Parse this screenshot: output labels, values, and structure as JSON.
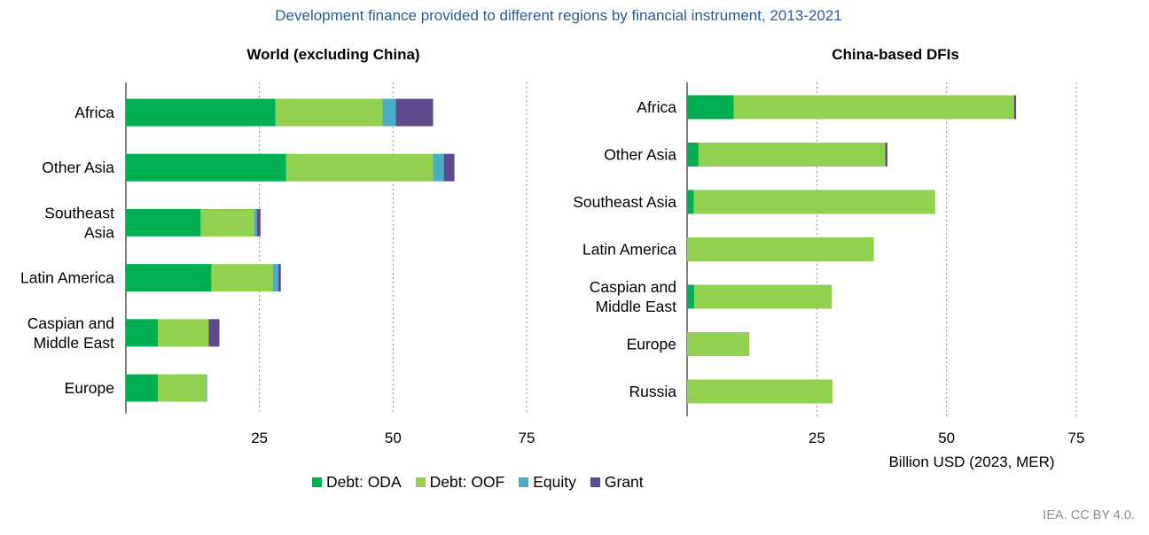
{
  "title": "Development finance provided to different regions by financial instrument, 2013-2021",
  "source": "IEA. CC BY 4.0.",
  "colors": {
    "debt_oda": "#00b050",
    "debt_oof": "#92d050",
    "equity": "#4bacc6",
    "grant": "#5f4b8b",
    "grid": "#909090",
    "title": "#2f5c8f"
  },
  "legend": [
    {
      "name": "Debt: ODA",
      "color": "#00b050"
    },
    {
      "name": "Debt: OOF",
      "color": "#92d050"
    },
    {
      "name": "Equity",
      "color": "#4bacc6"
    },
    {
      "name": "Grant",
      "color": "#5f4b8b"
    }
  ],
  "chart_data": [
    {
      "type": "bar",
      "orientation": "horizontal",
      "stacked": true,
      "title": "World (excluding China)",
      "xlabel": "",
      "categories": [
        [
          "Africa"
        ],
        [
          "Other Asia"
        ],
        [
          "Southeast",
          "Asia"
        ],
        [
          "Latin America"
        ],
        [
          "Caspian and",
          "Middle East"
        ],
        [
          "Europe"
        ]
      ],
      "series": [
        {
          "name": "Debt: ODA",
          "values": [
            28,
            30,
            14,
            16,
            6,
            6
          ]
        },
        {
          "name": "Debt: OOF",
          "values": [
            20,
            27.5,
            10,
            11.5,
            9.5,
            9
          ]
        },
        {
          "name": "Equity",
          "values": [
            2.5,
            2,
            0.5,
            1,
            0,
            0.2
          ]
        },
        {
          "name": "Grant",
          "values": [
            7,
            2,
            0.7,
            0.5,
            2,
            0
          ]
        }
      ],
      "xlim": [
        0,
        75
      ],
      "xticks": [
        25,
        50,
        75
      ],
      "grid": true
    },
    {
      "type": "bar",
      "orientation": "horizontal",
      "stacked": true,
      "title": "China-based DFIs",
      "xlabel": "Billion USD (2023, MER)",
      "categories": [
        [
          "Africa"
        ],
        [
          "Other Asia"
        ],
        [
          "Southeast Asia"
        ],
        [
          "Latin America"
        ],
        [
          "Caspian and",
          "Middle East"
        ],
        [
          "Europe"
        ],
        [
          "Russia"
        ]
      ],
      "series": [
        {
          "name": "Debt: ODA",
          "values": [
            9,
            2.2,
            1.3,
            0,
            1.4,
            0,
            0
          ]
        },
        {
          "name": "Debt: OOF",
          "values": [
            54,
            36,
            46.5,
            36,
            26.5,
            12,
            28
          ]
        },
        {
          "name": "Equity",
          "values": [
            0,
            0,
            0,
            0,
            0,
            0,
            0
          ]
        },
        {
          "name": "Grant",
          "values": [
            0.4,
            0.4,
            0,
            0,
            0,
            0,
            0
          ]
        }
      ],
      "xlim": [
        0,
        75
      ],
      "xticks": [
        25,
        50,
        75
      ],
      "grid": true
    }
  ]
}
